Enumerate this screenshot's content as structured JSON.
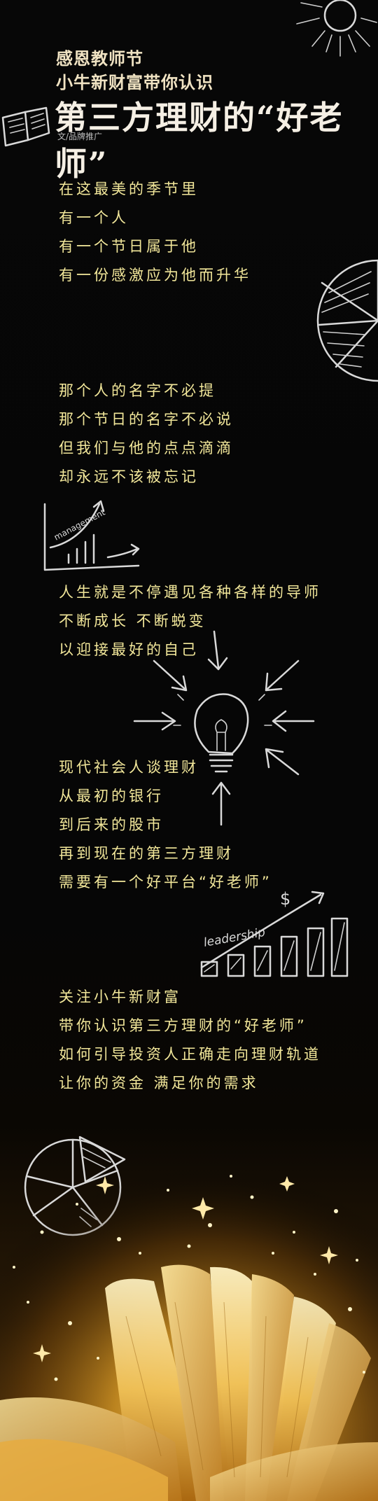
{
  "header": {
    "line1": "感恩教师节",
    "line2": "小牛新财富带你认识",
    "title": "第三方理财的“好老师”",
    "byline": "文/品牌推广"
  },
  "stanzas": [
    [
      "在这最美的季节里",
      "有一个人",
      "有一个节日属于他",
      "有一份感激应为他而升华"
    ],
    [
      "那个人的名字不必提",
      "那个节日的名字不必说",
      "但我们与他的点点滴滴",
      "却永远不该被忘记"
    ],
    [
      "人生就是不停遇见各种各样的导师",
      "不断成长 不断蜕变",
      "以迎接最好的自己"
    ],
    [
      "现代社会人谈理财",
      "从最初的银行",
      "到后来的股市",
      "再到现在的第三方理财",
      "需要有一个好平台“好老师”"
    ],
    [
      "关注小牛新财富",
      "带你认识第三方理财的“好老师”",
      "如何引导投资人正确走向理财轨道",
      "让你的资金 满足你的需求"
    ]
  ],
  "doodles": {
    "management_label": "management",
    "leadership_label": "leadership",
    "dollar_sign": "$"
  },
  "icons": [
    "sun-icon",
    "open-book-icon",
    "pie-chart-icon",
    "growth-chart-icon",
    "lightbulb-icon",
    "bar-chart-icon",
    "golden-book-icon"
  ],
  "colors": {
    "background": "#000000",
    "poem_text": "#f2e79a",
    "title_text": "#f5efe4",
    "gold_glow": "#ffcc55"
  }
}
